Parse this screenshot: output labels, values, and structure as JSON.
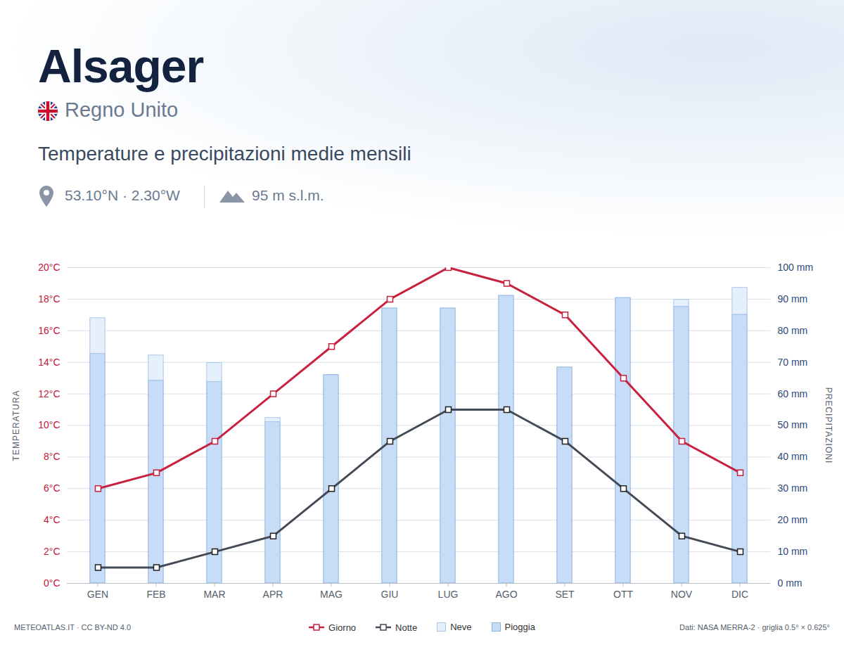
{
  "chart_data": {
    "type": "bar",
    "title": "Alsager",
    "country": "Regno Unito",
    "subtitle": "Temperature e precipitazioni medie mensili",
    "coordinates": "53.10°N · 2.30°W",
    "elevation": "95 m s.l.m.",
    "credit": "METEOATLAS.IT · CC BY-ND 4.0",
    "source": "Dati: NASA MERRA-2 · griglia 0.5° × 0.625°",
    "ylabel": "TEMPERATURA",
    "y2label": "PRECIPITAZIONI",
    "categories": [
      "GEN",
      "FEB",
      "MAR",
      "APR",
      "MAG",
      "GIU",
      "LUG",
      "AGO",
      "SET",
      "OTT",
      "NOV",
      "DIC"
    ],
    "series": [
      {
        "name": "Giorno",
        "type": "line",
        "color": "#c8203f",
        "marker": "square",
        "values": [
          6,
          7,
          9,
          12,
          15,
          18,
          20,
          19,
          17,
          13,
          9,
          7
        ]
      },
      {
        "name": "Notte",
        "type": "line",
        "color": "#444a55",
        "marker": "square",
        "values": [
          1,
          1,
          2,
          3,
          6,
          9,
          11,
          11,
          9,
          6,
          3,
          2
        ]
      },
      {
        "name": "Neve",
        "type": "bar",
        "axis": "y2",
        "color": "#e6f0fc",
        "values": [
          11.3,
          8,
          6,
          1.3,
          0,
          0,
          0,
          0,
          0,
          0,
          2.2,
          8.5
        ]
      },
      {
        "name": "Pioggia",
        "type": "bar",
        "axis": "y2",
        "color": "#c6dcf7",
        "values": [
          72.7,
          64.2,
          63.8,
          51.1,
          66,
          87.1,
          87.1,
          91.1,
          68.4,
          90.4,
          87.6,
          85.1
        ]
      }
    ],
    "stacked": true,
    "ylim": [
      0,
      20
    ],
    "yticks": [
      {
        "value": 0,
        "label": "0°C"
      },
      {
        "value": 2,
        "label": "2°C"
      },
      {
        "value": 4,
        "label": "4°C"
      },
      {
        "value": 6,
        "label": "6°C"
      },
      {
        "value": 8,
        "label": "8°C"
      },
      {
        "value": 10,
        "label": "10°C"
      },
      {
        "value": 12,
        "label": "12°C"
      },
      {
        "value": 14,
        "label": "14°C"
      },
      {
        "value": 16,
        "label": "16°C"
      },
      {
        "value": 18,
        "label": "18°C"
      },
      {
        "value": 20,
        "label": "20°C"
      }
    ],
    "y2lim": [
      0,
      100
    ],
    "y2ticks": [
      {
        "value": 0,
        "label": "0 mm"
      },
      {
        "value": 10,
        "label": "10 mm"
      },
      {
        "value": 20,
        "label": "20 mm"
      },
      {
        "value": 30,
        "label": "30 mm"
      },
      {
        "value": 40,
        "label": "40 mm"
      },
      {
        "value": 50,
        "label": "50 mm"
      },
      {
        "value": 60,
        "label": "60 mm"
      },
      {
        "value": 70,
        "label": "70 mm"
      },
      {
        "value": 80,
        "label": "80 mm"
      },
      {
        "value": 90,
        "label": "90 mm"
      },
      {
        "value": 100,
        "label": "100 mm"
      }
    ],
    "grid": true,
    "legend": "bottom"
  }
}
